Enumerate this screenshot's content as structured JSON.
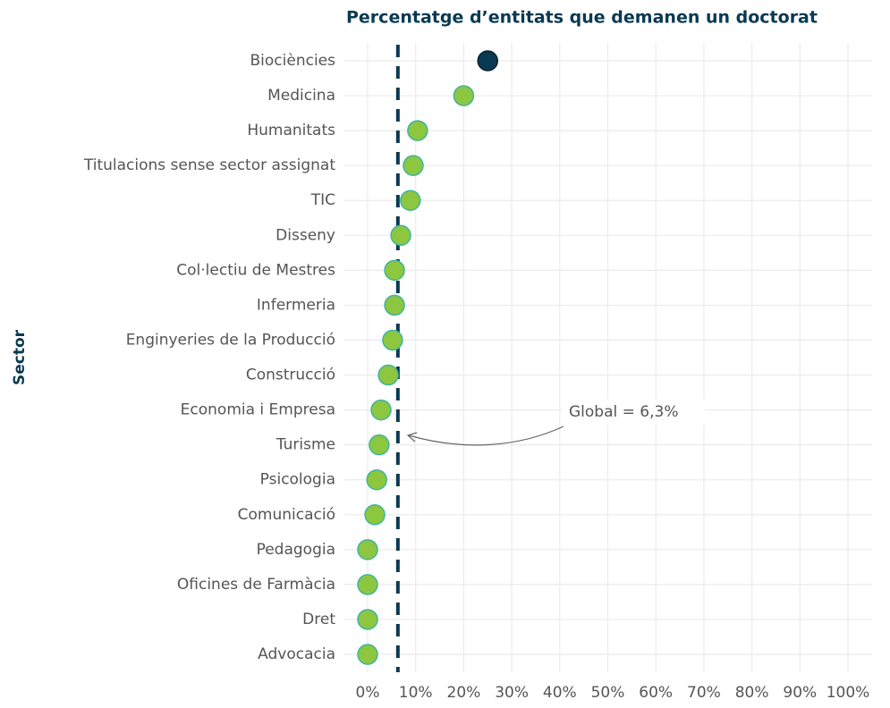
{
  "chart_data": {
    "type": "dot",
    "title": "Percentatge d’entitats que demanen un doctorat",
    "y_label": "Sector",
    "categories": [
      "Biociències",
      "Medicina",
      "Humanitats",
      "Titulacions sense sector assignat",
      "TIC",
      "Disseny",
      "Col·lectiu de Mestres",
      "Infermeria",
      "Enginyeries de la Producció",
      "Construcció",
      "Economia i Empresa",
      "Turisme",
      "Psicologia",
      "Comunicació",
      "Pedagogia",
      "Oficines de Farmàcia",
      "Dret",
      "Advocacia"
    ],
    "values": [
      25,
      20,
      10.4,
      9.5,
      8.9,
      6.9,
      5.6,
      5.6,
      5.2,
      4.3,
      2.8,
      2.4,
      1.9,
      1.5,
      0,
      0,
      0,
      0
    ],
    "colors": [
      "#0a3a52",
      "#8dc63f",
      "#8dc63f",
      "#8dc63f",
      "#8dc63f",
      "#8dc63f",
      "#8dc63f",
      "#8dc63f",
      "#8dc63f",
      "#8dc63f",
      "#8dc63f",
      "#8dc63f",
      "#8dc63f",
      "#8dc63f",
      "#8dc63f",
      "#8dc63f",
      "#8dc63f",
      "#8dc63f"
    ],
    "reference_line": {
      "value": 6.3,
      "label": "Global = 6,3%",
      "color": "#0a3a52"
    },
    "xlim": [
      0,
      100
    ],
    "xticks": [
      {
        "value": 0,
        "label": "0%"
      },
      {
        "value": 10,
        "label": "10%"
      },
      {
        "value": 20,
        "label": "20%"
      },
      {
        "value": 30,
        "label": "30%"
      },
      {
        "value": 40,
        "label": "40%"
      },
      {
        "value": 50,
        "label": "50%"
      },
      {
        "value": 60,
        "label": "60%"
      },
      {
        "value": 70,
        "label": "70%"
      },
      {
        "value": 80,
        "label": "80%"
      },
      {
        "value": 90,
        "label": "90%"
      },
      {
        "value": 100,
        "label": "100%"
      }
    ],
    "grid": true
  }
}
